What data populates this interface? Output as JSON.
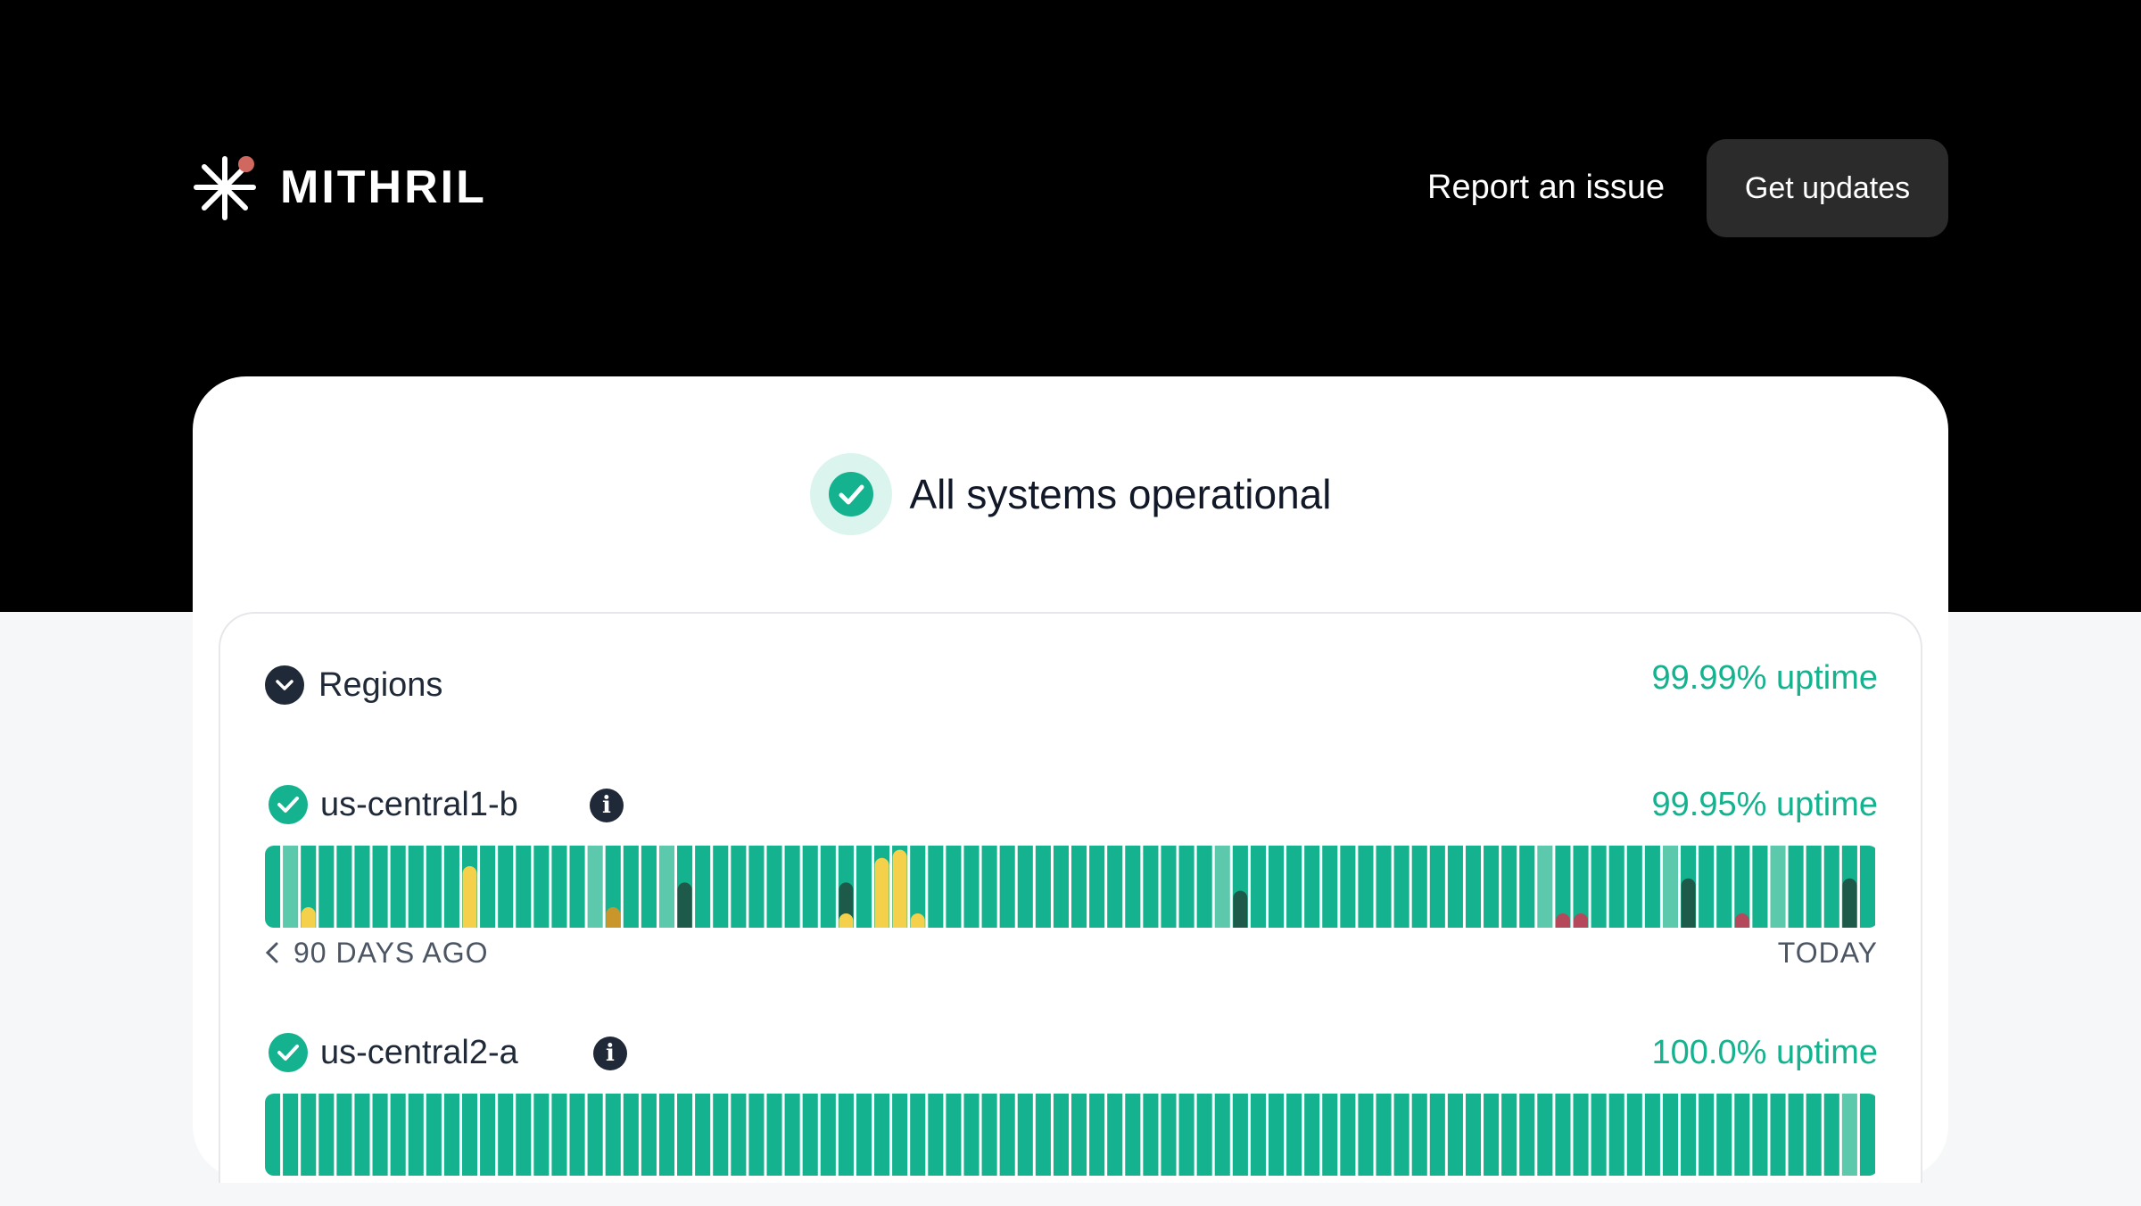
{
  "brand": {
    "name": "MITHRIL",
    "colors": {
      "primary": "#14b28e",
      "accent": "#d0685f",
      "dark": "#000000"
    }
  },
  "nav": {
    "report_label": "Report an issue",
    "updates_label": "Get updates"
  },
  "status": {
    "text": "All systems operational",
    "icon": "check-circle-icon"
  },
  "group": {
    "title": "Regions",
    "uptime": "99.99% uptime",
    "icon": "chevron-down-icon"
  },
  "components": [
    {
      "name": "us-central1-b",
      "uptime": "99.95% uptime",
      "days": 90,
      "incidents": [
        {
          "day": 2,
          "level": "minor",
          "severity": 0.25
        },
        {
          "day": 11,
          "level": "minor",
          "severity": 0.75
        },
        {
          "day": 19,
          "level": "mixed",
          "severity": 0.25
        },
        {
          "day": 23,
          "level": "maintenance",
          "severity": 0.55
        },
        {
          "day": 32,
          "level": "maintenance",
          "severity": 0.55
        },
        {
          "day": 32,
          "level": "minor",
          "severity": 0.15
        },
        {
          "day": 34,
          "level": "minor",
          "severity": 0.85
        },
        {
          "day": 35,
          "level": "minor",
          "severity": 0.95
        },
        {
          "day": 36,
          "level": "minor",
          "severity": 0.15
        },
        {
          "day": 54,
          "level": "maintenance",
          "severity": 0.45
        },
        {
          "day": 72,
          "level": "major",
          "severity": 0.15
        },
        {
          "day": 73,
          "level": "major",
          "severity": 0.15
        },
        {
          "day": 79,
          "level": "maintenance",
          "severity": 0.6
        },
        {
          "day": 82,
          "level": "major",
          "severity": 0.15
        },
        {
          "day": 88,
          "level": "maintenance",
          "severity": 0.6
        }
      ],
      "light_days": [
        1,
        18,
        22,
        53,
        71,
        78,
        84
      ],
      "scale_left": "90 DAYS AGO",
      "scale_right": "TODAY"
    },
    {
      "name": "us-central2-a",
      "uptime": "100.0% uptime",
      "days": 90,
      "incidents": [],
      "light_days": [
        88
      ]
    }
  ]
}
